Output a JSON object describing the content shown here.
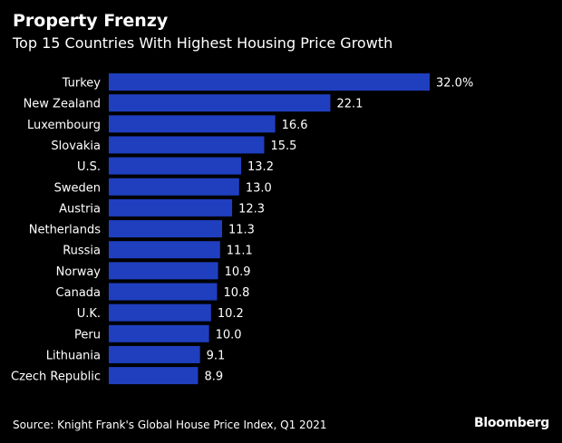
{
  "chart_data": {
    "type": "bar",
    "orientation": "horizontal",
    "title": "Property Frenzy",
    "subtitle": "Top 15 Countries With Highest Housing Price Growth",
    "categories": [
      "Turkey",
      "New Zealand",
      "Luxembourg",
      "Slovakia",
      "U.S.",
      "Sweden",
      "Austria",
      "Netherlands",
      "Russia",
      "Norway",
      "Canada",
      "U.K.",
      "Peru",
      "Lithuania",
      "Czech Republic"
    ],
    "values": [
      32.0,
      22.1,
      16.6,
      15.5,
      13.2,
      13.0,
      12.3,
      11.3,
      11.1,
      10.9,
      10.8,
      10.2,
      10.0,
      9.1,
      8.9
    ],
    "value_labels": [
      "32.0%",
      "22.1",
      "16.6",
      "15.5",
      "13.2",
      "13.0",
      "12.3",
      "11.3",
      "11.1",
      "10.9",
      "10.8",
      "10.2",
      "10.0",
      "9.1",
      "8.9"
    ],
    "xlim": [
      0,
      32.0
    ],
    "grid": false,
    "bar_color": "#1f3fbf",
    "source": "Source: Knight Frank's Global House Price Index, Q1 2021"
  },
  "brand": "Bloomberg"
}
